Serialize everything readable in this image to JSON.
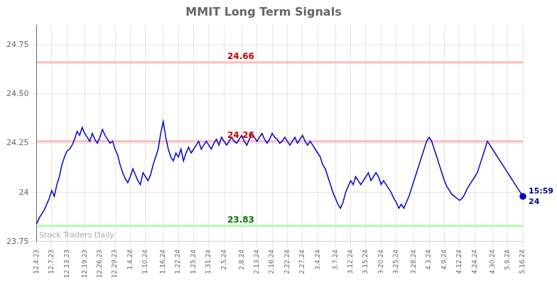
{
  "chart_data": {
    "type": "line",
    "title": "MMIT Long Term Signals",
    "color": "#0000cc",
    "marker": "circle",
    "grid": true,
    "ylim": [
      23.75,
      24.85
    ],
    "yticks": [
      23.75,
      24,
      24.25,
      {
        "value": 24.5,
        "label": "24.50"
      },
      24.75
    ],
    "reference_lines": [
      {
        "value": 24.66,
        "label": "24.66",
        "color": "#ffbbbb",
        "label_color": "#cc0000"
      },
      {
        "value": 24.26,
        "label": "24.26",
        "color": "#ffbbbb",
        "label_color": "#cc0000"
      },
      {
        "value": 23.83,
        "label": "23.83",
        "color": "#aaffaa",
        "label_color": "#007700"
      }
    ],
    "annotations": [
      {
        "text": "Stock Traders Daily",
        "color": "#aaaaaa"
      },
      {
        "text": "15:59",
        "color": "#000088"
      },
      {
        "text": "24",
        "color": "#000088"
      }
    ],
    "categories": [
      "12.4.23",
      null,
      null,
      null,
      null,
      null,
      "12.7.23",
      null,
      null,
      null,
      null,
      null,
      "12.13.23",
      null,
      null,
      null,
      null,
      null,
      null,
      "12.19.23",
      null,
      null,
      null,
      null,
      null,
      "12.26.23",
      null,
      null,
      null,
      null,
      null,
      "12.29.23",
      null,
      null,
      null,
      null,
      null,
      "1.4.24",
      null,
      null,
      null,
      null,
      null,
      "1.10.24",
      null,
      null,
      null,
      null,
      null,
      null,
      "1.16.24",
      null,
      null,
      null,
      null,
      null,
      "1.22.24",
      null,
      null,
      null,
      null,
      null,
      "1.25.24",
      null,
      null,
      null,
      null,
      null,
      "1.31.24",
      null,
      null,
      null,
      null,
      null,
      "2.5.24",
      null,
      null,
      null,
      null,
      null,
      null,
      "2.8.24",
      null,
      null,
      null,
      null,
      null,
      "2.13.24",
      null,
      null,
      null,
      null,
      null,
      "2.16.24",
      null,
      null,
      null,
      null,
      null,
      "2.22.24",
      null,
      null,
      null,
      null,
      null,
      "2.27.24",
      null,
      null,
      null,
      null,
      null,
      "3.4.24",
      null,
      null,
      null,
      null,
      null,
      null,
      "3.7.24",
      null,
      null,
      null,
      null,
      null,
      "3.12.24",
      null,
      null,
      null,
      null,
      null,
      "3.15.24",
      null,
      null,
      null,
      null,
      null,
      "3.20.24",
      null,
      null,
      null,
      null,
      null,
      "3.25.24",
      null,
      null,
      null,
      null,
      null,
      null,
      "3.28.24",
      null,
      null,
      null,
      null,
      null,
      "4.3.24",
      null,
      null,
      null,
      null,
      null,
      "4.9.24",
      null,
      null,
      null,
      null,
      null,
      "4.12.24",
      null,
      null,
      null,
      null,
      null,
      "4.24.24",
      null,
      null,
      null,
      null,
      null,
      null,
      "4.30.24",
      null,
      null,
      null,
      null,
      null,
      "5.9.24",
      null,
      null,
      null,
      null,
      null,
      "5.16.24"
    ],
    "values": [
      23.84,
      23.87,
      23.89,
      23.91,
      23.94,
      23.97,
      24.01,
      23.98,
      24.04,
      24.08,
      24.14,
      24.18,
      24.21,
      24.22,
      24.24,
      24.27,
      24.31,
      24.29,
      24.33,
      24.3,
      24.28,
      24.26,
      24.3,
      24.27,
      24.25,
      24.28,
      24.32,
      24.29,
      24.27,
      24.25,
      24.26,
      24.22,
      24.19,
      24.14,
      24.1,
      24.07,
      24.05,
      24.08,
      24.12,
      24.09,
      24.06,
      24.04,
      24.1,
      24.08,
      24.06,
      24.09,
      24.14,
      24.18,
      24.22,
      24.3,
      24.36,
      24.28,
      24.22,
      24.18,
      24.16,
      24.2,
      24.18,
      24.22,
      24.16,
      24.2,
      24.23,
      24.2,
      24.22,
      24.24,
      24.26,
      24.22,
      24.24,
      24.26,
      24.24,
      24.22,
      24.25,
      24.27,
      24.24,
      24.28,
      24.26,
      24.24,
      24.26,
      24.28,
      24.26,
      24.25,
      24.27,
      24.29,
      24.26,
      24.24,
      24.27,
      24.3,
      24.28,
      24.26,
      24.28,
      24.3,
      24.27,
      24.25,
      24.27,
      24.3,
      24.28,
      24.27,
      24.25,
      24.26,
      24.28,
      24.26,
      24.24,
      24.26,
      24.28,
      24.25,
      24.27,
      24.29,
      24.26,
      24.24,
      24.26,
      24.24,
      24.22,
      24.2,
      24.18,
      24.14,
      24.12,
      24.08,
      24.04,
      24.0,
      23.97,
      23.94,
      23.92,
      23.95,
      24.0,
      24.03,
      24.06,
      24.04,
      24.08,
      24.06,
      24.04,
      24.06,
      24.08,
      24.1,
      24.06,
      24.08,
      24.1,
      24.08,
      24.04,
      24.06,
      24.04,
      24.02,
      24.0,
      23.97,
      23.95,
      23.92,
      23.94,
      23.92,
      23.95,
      23.98,
      24.02,
      24.06,
      24.1,
      24.14,
      24.18,
      24.22,
      24.26,
      24.28,
      24.26,
      24.22,
      24.18,
      24.14,
      24.1,
      24.06,
      24.03,
      24.01,
      23.99,
      23.98,
      23.97,
      23.96,
      23.97,
      23.99,
      24.02,
      24.04,
      24.06,
      24.08,
      24.1,
      24.14,
      24.18,
      24.22,
      24.26,
      24.24,
      24.22,
      24.2,
      24.18,
      24.16,
      24.14,
      24.12,
      24.1,
      24.08,
      24.06,
      24.04,
      24.02,
      24.0,
      23.98
    ]
  }
}
